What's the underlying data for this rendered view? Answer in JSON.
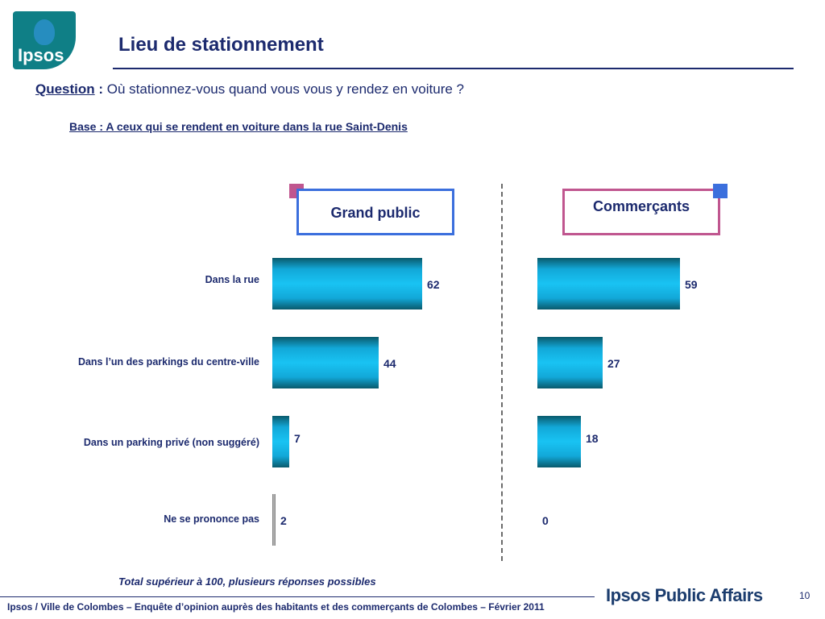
{
  "logo": {
    "text": "Ipsos"
  },
  "title": "Lieu de stationnement",
  "question": {
    "label": "Question",
    "colon": " :",
    "text": " Où stationnez-vous quand vous vous y rendez en voiture ?"
  },
  "base": "Base : A ceux qui se rendent en voiture dans la rue Saint-Denis",
  "chart_data": {
    "type": "bar",
    "orientation": "horizontal",
    "categories": [
      "Dans la rue",
      "Dans l’un des parkings du centre-ville",
      "Dans un parking privé (non suggéré)",
      "Ne se prononce pas"
    ],
    "series": [
      {
        "name": "Grand public",
        "values": [
          62,
          44,
          7,
          2
        ]
      },
      {
        "name": "Commerçants",
        "values": [
          59,
          27,
          18,
          0
        ]
      }
    ],
    "colors": {
      "bar": "#19c3f3",
      "bar_dark": "#0a5a6c",
      "no_answer": "#9a9a9a",
      "grand_public_frame": "#3b6fdd",
      "commercants_frame": "#c0568f"
    }
  },
  "note": "Total supérieur à 100, plusieurs réponses possibles",
  "footer": "Ipsos / Ville de Colombes – Enquête d’opinion auprès des habitants et des commerçants de Colombes – Février 2011",
  "brand": "Ipsos Public Affairs",
  "page_number": "10"
}
